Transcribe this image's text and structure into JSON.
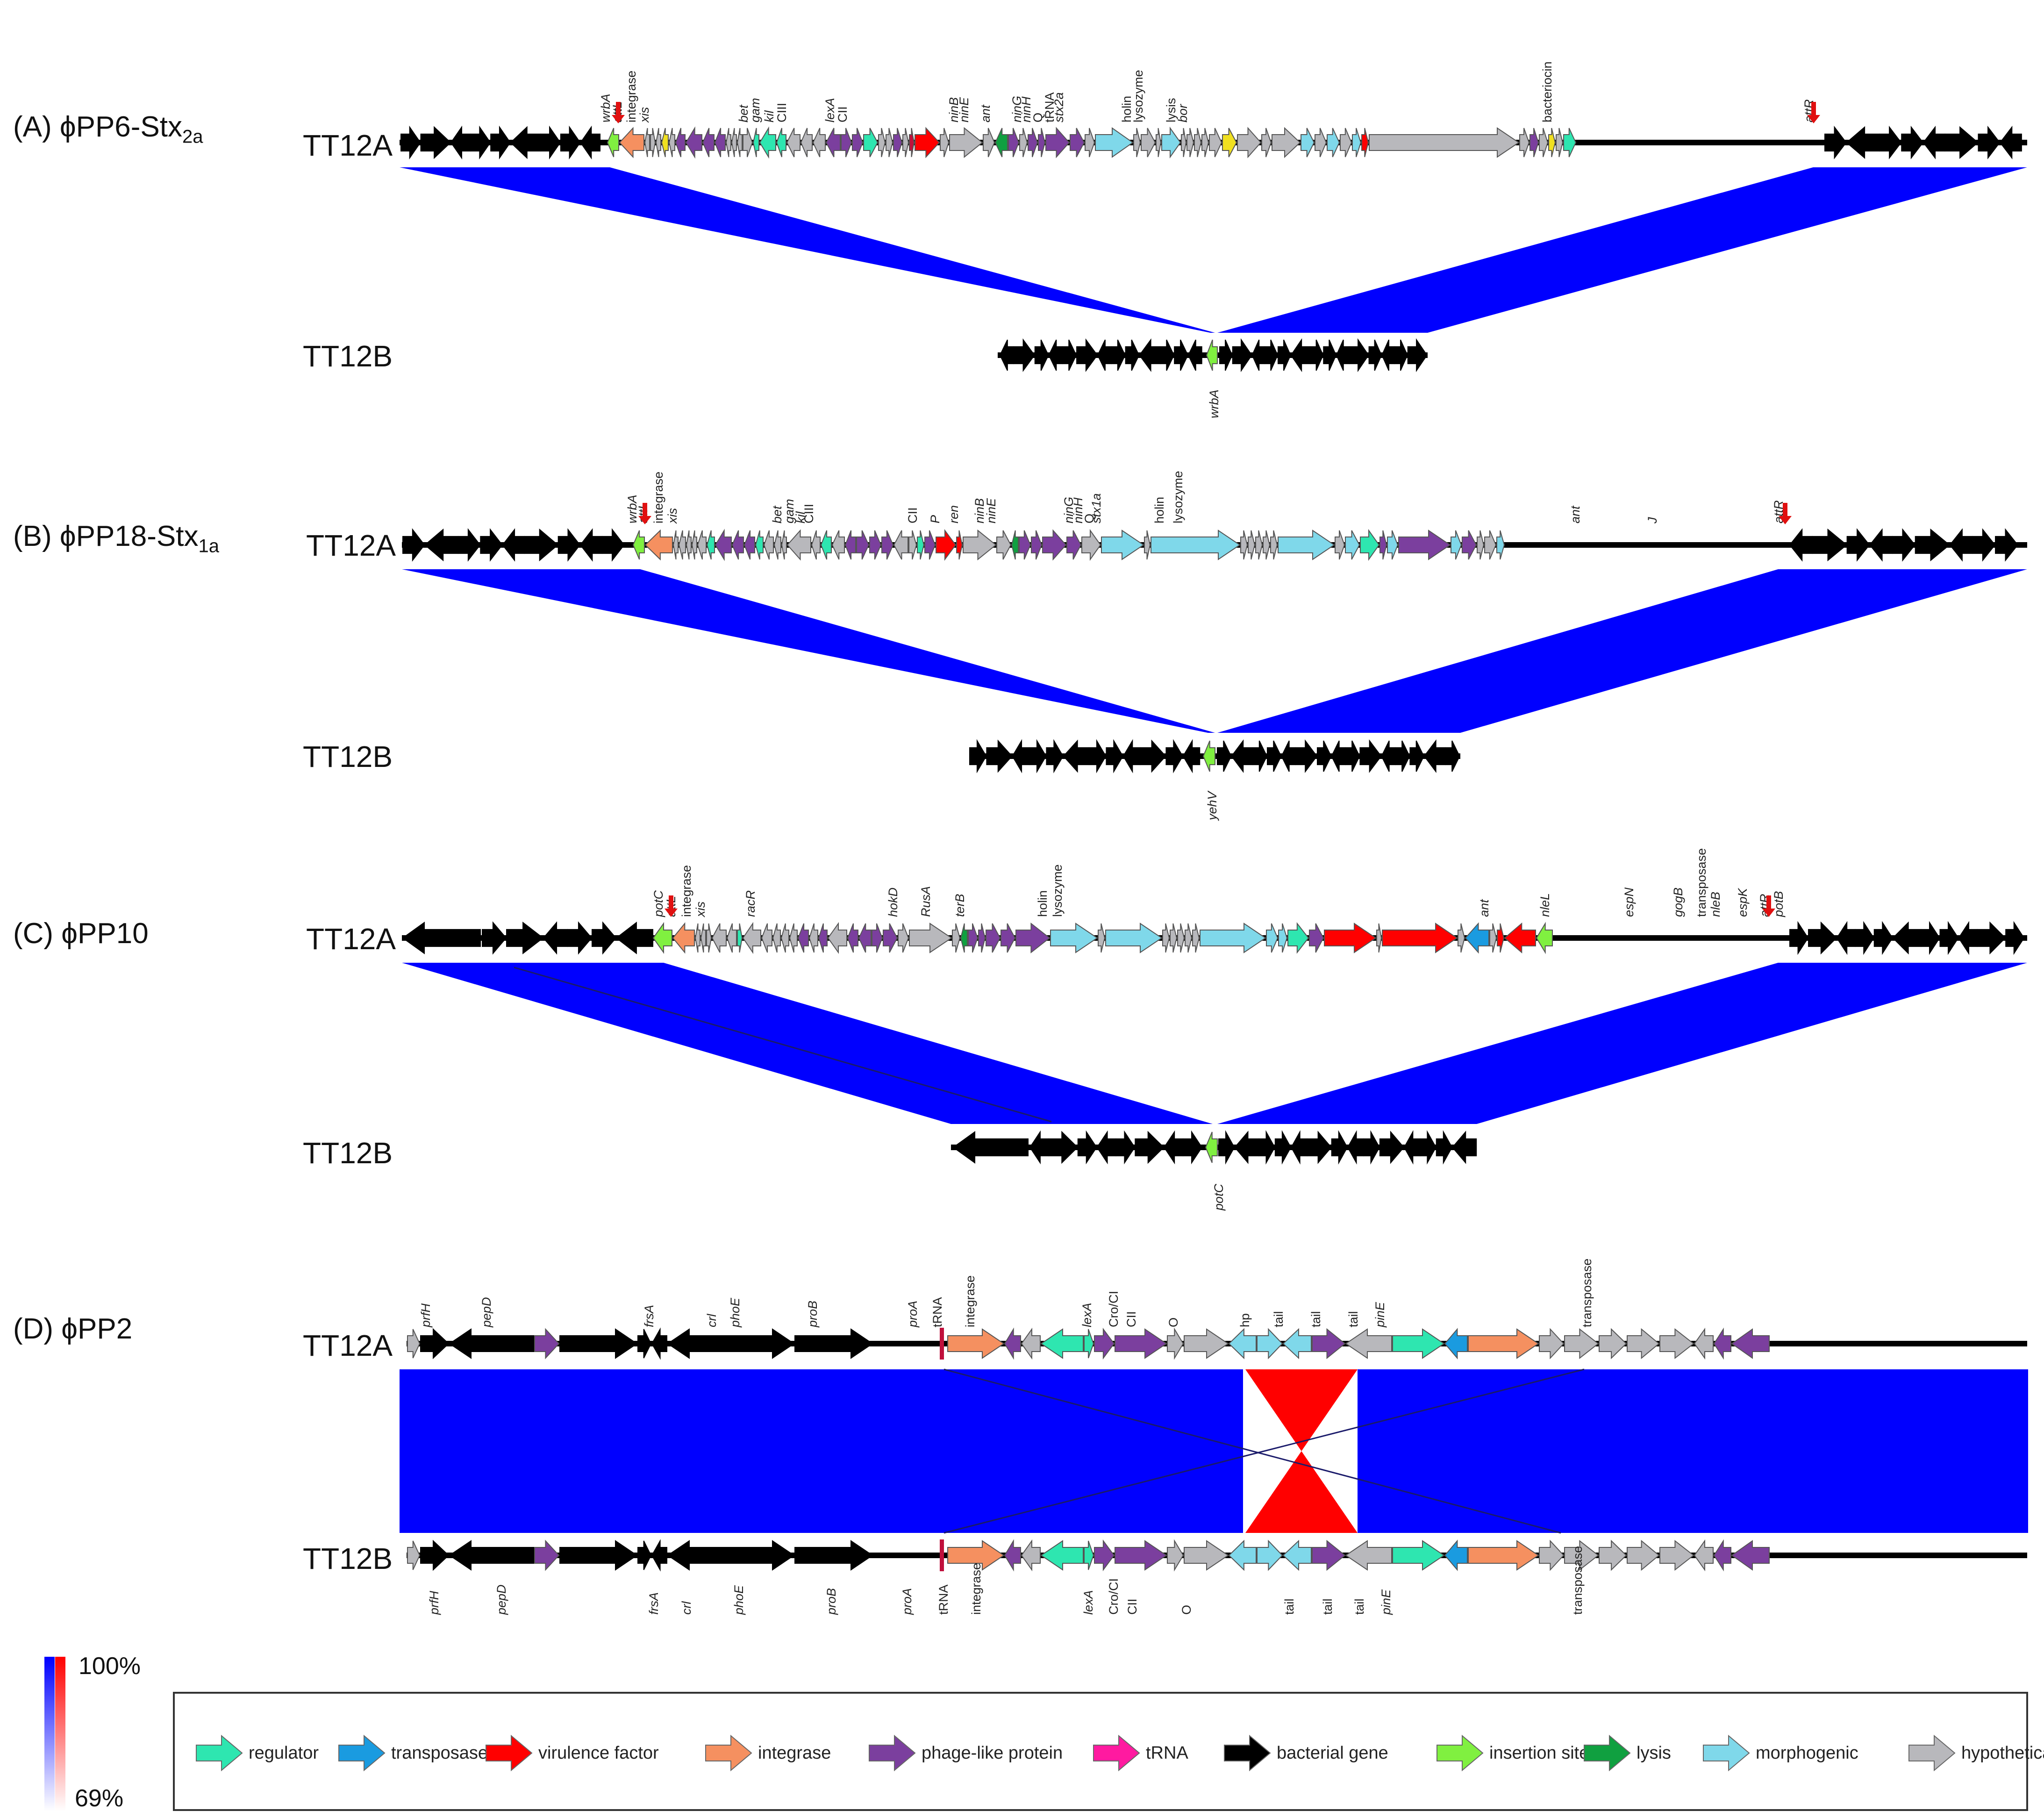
{
  "colors": {
    "regulator": "#2ee6b0",
    "transposase": "#1a9be0",
    "virulence": "#ff0000",
    "integrase": "#f59060",
    "phage": "#7b3f9e",
    "trna": "#ff1aa0",
    "bacterial": "#000000",
    "insertion": "#80f040",
    "lysis": "#10a040",
    "morphogenic": "#7fd8ea",
    "hypothetical": "#b8b8bc",
    "yellow": "#f0e020",
    "trna_line": "#c0103c",
    "blue": "#0000ff",
    "red": "#ff0000"
  },
  "panels": [
    {
      "id": "A",
      "label_prefix": "(A) ϕPP6-Stx",
      "label_sub": "2a",
      "genome_a": "TT12A",
      "genome_b": "TT12B",
      "top_labels": [
        "wrbA",
        "attL",
        "integrase",
        "xis",
        "bet",
        "gam",
        "kil",
        "CIII",
        "lexA",
        "CII",
        "ninB",
        "ninE",
        "ant",
        "ninG",
        "ninH",
        "Q",
        "tRNA",
        "stx2a",
        "holin",
        "lysozyme",
        "lysis",
        "bor",
        "bacteriocin",
        "attR"
      ],
      "bottom_labels": [
        "wrbA"
      ]
    },
    {
      "id": "B",
      "label_prefix": "(B) ϕPP18-Stx",
      "label_sub": "1a",
      "genome_a": "TT12A",
      "genome_b": "TT12B",
      "top_labels": [
        "wrbA",
        "attL",
        "integrase",
        "xis",
        "bet",
        "gam",
        "kil",
        "CIII",
        "CII",
        "P",
        "ren",
        "ninB",
        "ninE",
        "ninG",
        "ninH",
        "Q",
        "stx1a",
        "holin",
        "lysozyme",
        "ant",
        "J",
        "attR"
      ],
      "bottom_labels": [
        "yehV"
      ]
    },
    {
      "id": "C",
      "label_prefix": "(C) ϕPP10",
      "label_sub": "",
      "genome_a": "TT12A",
      "genome_b": "TT12B",
      "top_labels": [
        "potC",
        "attL",
        "integrase",
        "xis",
        "racR",
        "hokD",
        "RusA",
        "terB",
        "holin",
        "lysozyme",
        "ant",
        "nleL",
        "espN",
        "gogB",
        "transposase",
        "nleB",
        "espK",
        "attR",
        "potB"
      ],
      "bottom_labels": [
        "potC"
      ]
    },
    {
      "id": "D",
      "label_prefix": "(D) ϕPP2",
      "label_sub": "",
      "genome_a": "TT12A",
      "genome_b": "TT12B",
      "top_labels": [
        "prfH",
        "pepD",
        "frsA",
        "crl",
        "phoE",
        "proB",
        "proA",
        "tRNA",
        "integrase",
        "lexA",
        "Cro/CI",
        "CII",
        "O",
        "hp",
        "tail",
        "tail",
        "tail",
        "pinE",
        "transposase"
      ],
      "bottom_labels": [
        "prfH",
        "pepD",
        "frsA",
        "crl",
        "phoE",
        "proB",
        "proA",
        "tRNA",
        "integrase",
        "lexA",
        "Cro/CI",
        "CII",
        "O",
        "tail",
        "tail",
        "tail",
        "pinE",
        "transposase"
      ]
    }
  ],
  "scale": {
    "max": "100%",
    "min": "69%"
  },
  "legend": [
    {
      "key": "regulator",
      "label": "regulator"
    },
    {
      "key": "transposase",
      "label": "transposase"
    },
    {
      "key": "virulence",
      "label": "virulence factor"
    },
    {
      "key": "integrase",
      "label": "integrase"
    },
    {
      "key": "phage",
      "label": "phage-like protein"
    },
    {
      "key": "trna",
      "label": "tRNA"
    },
    {
      "key": "bacterial",
      "label": "bacterial gene"
    },
    {
      "key": "insertion",
      "label": "insertion site"
    },
    {
      "key": "lysis",
      "label": "lysis"
    },
    {
      "key": "morphogenic",
      "label": "morphogenic"
    },
    {
      "key": "hypothetical",
      "label": "hypothetical\\unknown"
    }
  ]
}
